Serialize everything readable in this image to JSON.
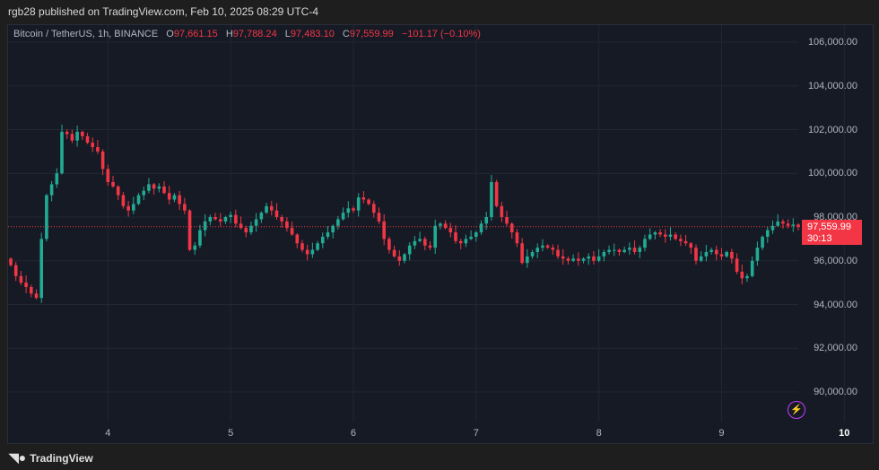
{
  "header": {
    "published": "rgb28 published on TradingView.com, Feb 10, 2025 08:29 UTC-4"
  },
  "legend": {
    "symbol": "Bitcoin / TetherUS, 1h, BINANCE",
    "o_label": "O",
    "o": "97,661.15",
    "h_label": "H",
    "h": "97,788.24",
    "l_label": "L",
    "l": "97,483.10",
    "c_label": "C",
    "c": "97,559.99",
    "change": "−101.17 (−0.10%)"
  },
  "price_tag": {
    "price": "97,559.99",
    "countdown": "30:13"
  },
  "footer": {
    "brand": "TradingView"
  },
  "colors": {
    "up": "#22ab94",
    "down": "#f23645",
    "bg": "#161a25"
  },
  "chart_data": {
    "type": "candlestick",
    "title": "Bitcoin / TetherUS, 1h, BINANCE",
    "ylim": [
      88500,
      107000
    ],
    "yticks": [
      {
        "v": 106000,
        "label": "106,000.00"
      },
      {
        "v": 104000,
        "label": "104,000.00"
      },
      {
        "v": 102000,
        "label": "102,000.00"
      },
      {
        "v": 100000,
        "label": "100,000.00"
      },
      {
        "v": 98000,
        "label": "98,000.00"
      },
      {
        "v": 96000,
        "label": "96,000.00"
      },
      {
        "v": 94000,
        "label": "94,000.00"
      },
      {
        "v": 92000,
        "label": "92,000.00"
      },
      {
        "v": 90000,
        "label": "90,000.00"
      }
    ],
    "xticks": [
      {
        "i": 19,
        "label": "4"
      },
      {
        "i": 43,
        "label": "5"
      },
      {
        "i": 67,
        "label": "6"
      },
      {
        "i": 91,
        "label": "7"
      },
      {
        "i": 115,
        "label": "8"
      },
      {
        "i": 139,
        "label": "9"
      },
      {
        "i": 163,
        "label": "10"
      }
    ],
    "last_price": 97559.99,
    "closes": [
      95800,
      95300,
      95000,
      94800,
      94500,
      94300,
      97000,
      99000,
      99500,
      100000,
      101900,
      101800,
      101500,
      101900,
      101700,
      101400,
      101200,
      101000,
      100200,
      99600,
      99400,
      99000,
      98500,
      98300,
      98600,
      99000,
      99200,
      99500,
      99300,
      99400,
      99100,
      98800,
      99000,
      98600,
      98300,
      96500,
      96700,
      97400,
      97800,
      98000,
      97900,
      97800,
      98000,
      98100,
      97700,
      97500,
      97300,
      97600,
      97900,
      98200,
      98500,
      98300,
      98000,
      97800,
      97500,
      97200,
      96800,
      96500,
      96300,
      96500,
      96800,
      97100,
      97300,
      97600,
      97900,
      98200,
      98400,
      98300,
      98900,
      98800,
      98600,
      98200,
      97800,
      97000,
      96500,
      96200,
      96000,
      96300,
      96700,
      96900,
      97000,
      96700,
      96600,
      97600,
      97700,
      97500,
      97300,
      96900,
      96800,
      97000,
      97100,
      97300,
      97700,
      98000,
      99600,
      98500,
      98000,
      97700,
      97300,
      96800,
      95900,
      96200,
      96400,
      96600,
      96700,
      96600,
      96500,
      96200,
      96100,
      96000,
      96100,
      96000,
      96100,
      96200,
      96000,
      96200,
      96400,
      96500,
      96500,
      96400,
      96500,
      96600,
      96400,
      96600,
      97000,
      97200,
      97300,
      97200,
      97100,
      97200,
      97000,
      96900,
      96800,
      96600,
      96000,
      96200,
      96400,
      96500,
      96300,
      96200,
      96400,
      96100,
      95500,
      95200,
      95300,
      96000,
      96600,
      97100,
      97400,
      97600,
      97800,
      97700,
      97600,
      97660,
      97560
    ]
  }
}
